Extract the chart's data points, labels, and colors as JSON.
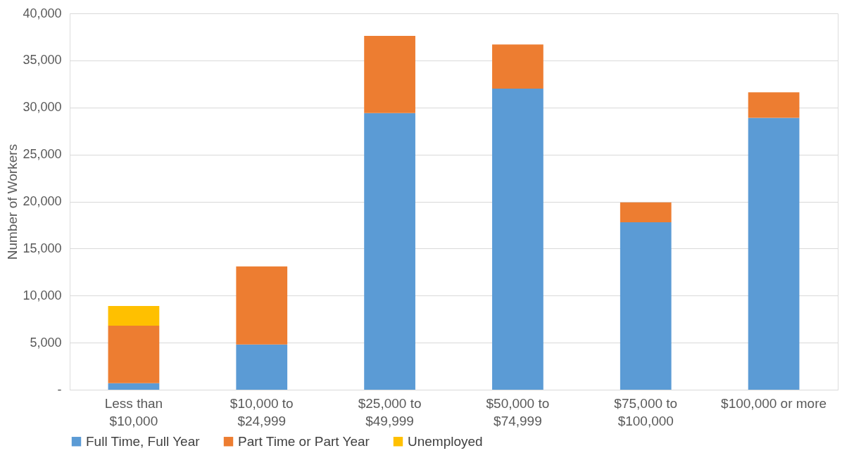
{
  "chart_data": {
    "type": "bar",
    "stacked": true,
    "ylabel": "Number of Workers",
    "categories": [
      "Less than\n$10,000",
      "$10,000 to\n$24,999",
      "$25,000 to\n$49,999",
      "$50,000 to\n$74,999",
      "$75,000 to\n$100,000",
      "$100,000 or more"
    ],
    "series": [
      {
        "name": "Full Time, Full Year",
        "color": "#5b9bd5",
        "values": [
          700,
          4800,
          29400,
          32000,
          17800,
          28900
        ]
      },
      {
        "name": "Part Time or Part Year",
        "color": "#ed7d31",
        "values": [
          6100,
          8300,
          8200,
          4700,
          2100,
          2700
        ]
      },
      {
        "name": "Unemployed",
        "color": "#ffc000",
        "values": [
          2100,
          null,
          null,
          null,
          null,
          null
        ]
      }
    ],
    "ylim": [
      0,
      40000
    ],
    "yticks": [
      {
        "value": 0,
        "label": "-"
      },
      {
        "value": 5000,
        "label": "5,000"
      },
      {
        "value": 10000,
        "label": "10,000"
      },
      {
        "value": 15000,
        "label": "15,000"
      },
      {
        "value": 20000,
        "label": "20,000"
      },
      {
        "value": 25000,
        "label": "25,000"
      },
      {
        "value": 30000,
        "label": "30,000"
      },
      {
        "value": 35000,
        "label": "35,000"
      },
      {
        "value": 40000,
        "label": "40,000"
      }
    ],
    "grid": "y",
    "legend": "bottom"
  }
}
